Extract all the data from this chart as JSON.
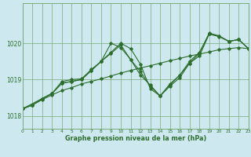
{
  "xlabel": "Graphe pression niveau de la mer (hPa)",
  "bg_color": "#cde8ee",
  "grid_color": "#7aaa7a",
  "line_color": "#2d6e2d",
  "ylim": [
    1017.65,
    1021.1
  ],
  "yticks": [
    1018,
    1019,
    1020
  ],
  "xlim": [
    0,
    23
  ],
  "xticks": [
    0,
    1,
    2,
    3,
    4,
    5,
    6,
    7,
    8,
    9,
    10,
    11,
    12,
    13,
    14,
    15,
    16,
    17,
    18,
    19,
    20,
    21,
    22,
    23
  ],
  "series": [
    {
      "x": [
        0,
        1,
        2,
        3,
        4,
        5,
        6,
        7,
        8,
        9,
        10,
        11,
        12,
        13,
        14,
        15,
        16,
        17,
        18,
        19,
        20,
        21,
        22,
        23
      ],
      "y": [
        1018.2,
        1018.3,
        1018.45,
        1018.58,
        1018.7,
        1018.78,
        1018.88,
        1018.95,
        1019.02,
        1019.1,
        1019.18,
        1019.25,
        1019.32,
        1019.38,
        1019.45,
        1019.52,
        1019.58,
        1019.65,
        1019.7,
        1019.76,
        1019.82,
        1019.85,
        1019.88,
        1019.85
      ]
    },
    {
      "x": [
        0,
        1,
        2,
        3,
        4,
        5,
        6,
        7,
        8,
        9,
        10,
        11,
        12,
        13,
        14,
        15,
        16,
        17,
        18,
        19,
        20,
        21,
        22,
        23
      ],
      "y": [
        1018.2,
        1018.3,
        1018.48,
        1018.62,
        1018.9,
        1018.95,
        1019.0,
        1019.25,
        1019.5,
        1020.0,
        1019.88,
        1019.55,
        1019.12,
        1018.85,
        1018.55,
        1018.88,
        1019.12,
        1019.5,
        1019.75,
        1020.25,
        1020.2,
        1020.05,
        1020.1,
        1019.85
      ]
    },
    {
      "x": [
        0,
        2,
        3,
        4,
        5,
        6,
        7,
        8,
        9,
        10,
        11,
        12,
        13,
        14,
        15,
        16,
        17,
        18,
        19,
        20,
        21,
        22,
        23
      ],
      "y": [
        1018.2,
        1018.48,
        1018.62,
        1018.9,
        1018.95,
        1019.0,
        1019.25,
        1019.5,
        1019.75,
        1020.0,
        1019.85,
        1019.42,
        1018.75,
        1018.55,
        1018.85,
        1019.12,
        1019.45,
        1019.72,
        1020.28,
        1020.2,
        1020.05,
        1020.1,
        1019.85
      ]
    },
    {
      "x": [
        0,
        1,
        2,
        3,
        4,
        5,
        6,
        7,
        8,
        9,
        10,
        11,
        12,
        13,
        14,
        15,
        16,
        17,
        18,
        19,
        20,
        21,
        22,
        23
      ],
      "y": [
        1018.2,
        1018.3,
        1018.48,
        1018.62,
        1018.95,
        1019.0,
        1019.02,
        1019.28,
        1019.5,
        1019.72,
        1019.95,
        1019.55,
        1019.22,
        1018.82,
        1018.55,
        1018.82,
        1019.05,
        1019.45,
        1019.65,
        1020.25,
        1020.18,
        1020.05,
        1020.1,
        1019.85
      ]
    }
  ]
}
